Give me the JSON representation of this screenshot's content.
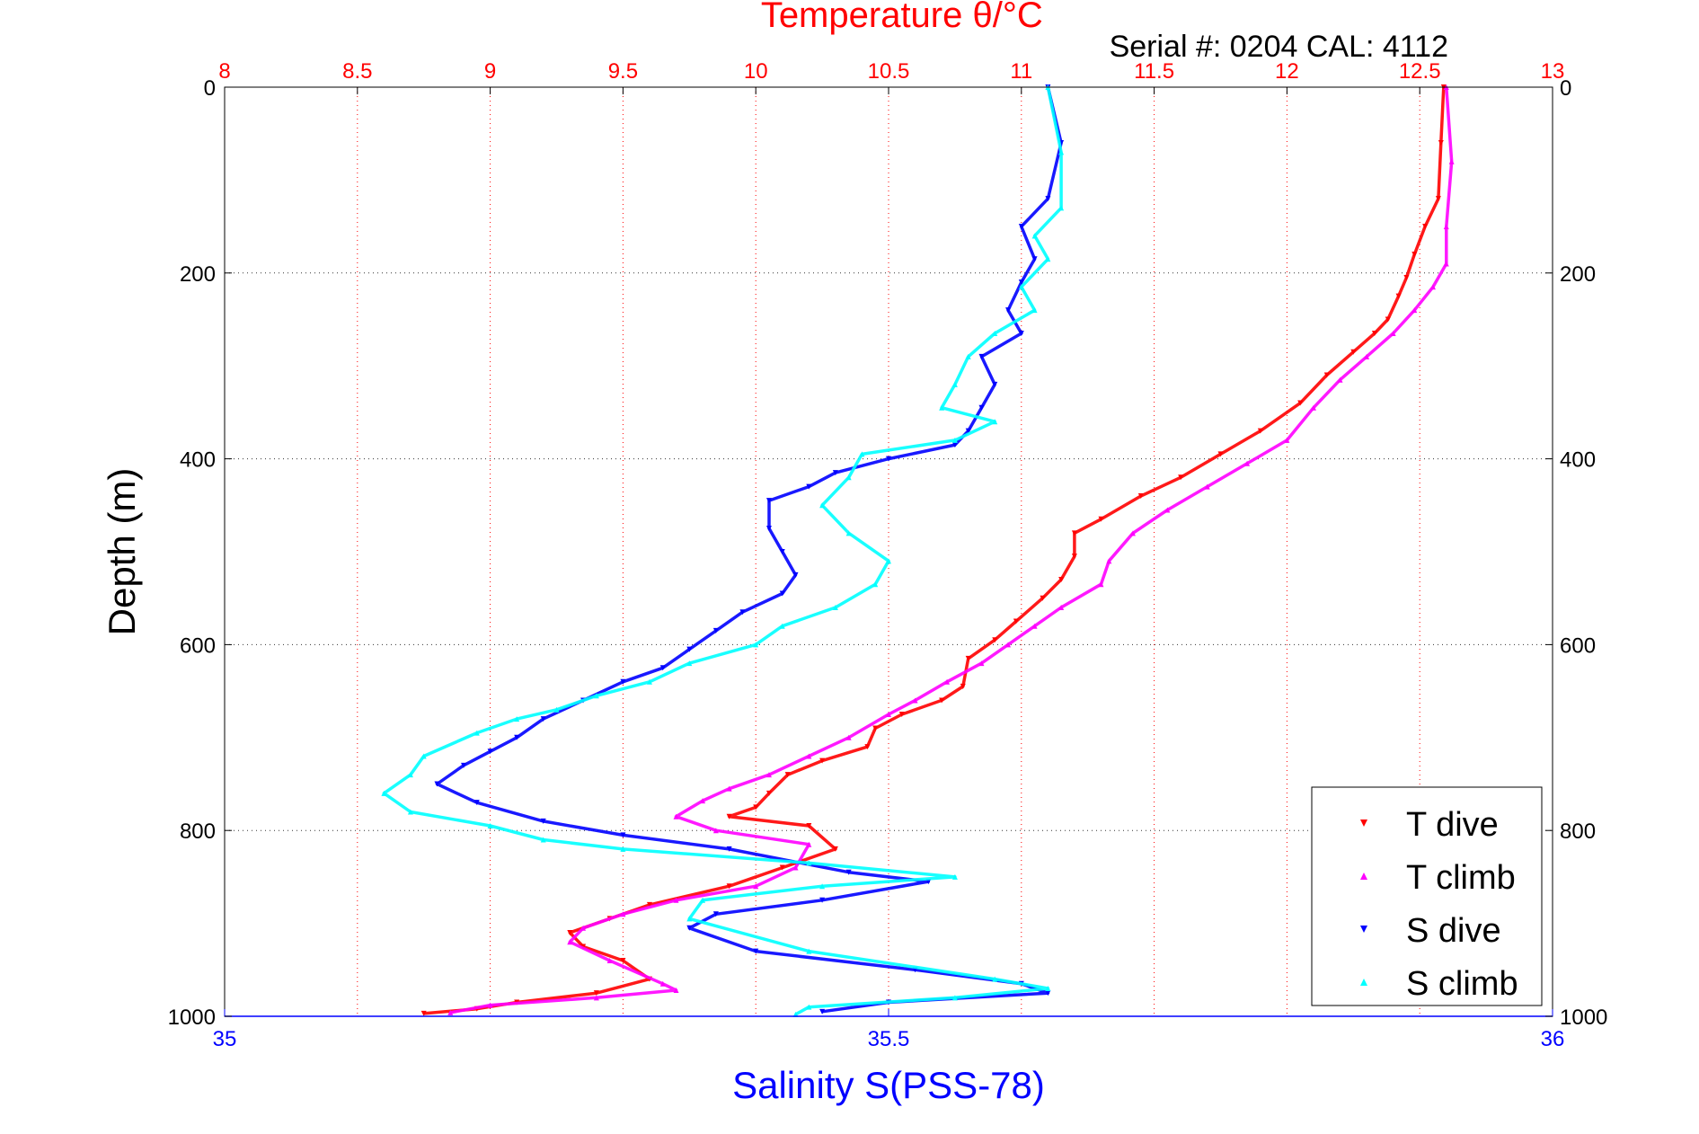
{
  "chart_data": {
    "type": "scatter",
    "title": "Temperature θ/°C",
    "subtitle": "Serial #: 0204  CAL: 4112",
    "ylabel": "Depth (m)",
    "xlabel": "Salinity S(PSS-78)",
    "temp_axis": {
      "lim": [
        8,
        13
      ],
      "ticks": [
        "8",
        "8.5",
        "9",
        "9.5",
        "10",
        "10.5",
        "11",
        "11.5",
        "12",
        "12.5",
        "13"
      ],
      "color": "#ff0000"
    },
    "sal_axis": {
      "lim": [
        35,
        36
      ],
      "ticks": [
        "35",
        "35.5",
        "36"
      ],
      "color": "#0000ff"
    },
    "depth_axis": {
      "lim": [
        0,
        1000
      ],
      "reversed": true,
      "ticks": [
        "0",
        "200",
        "400",
        "600",
        "800",
        "1000"
      ]
    },
    "grid": true,
    "legend": {
      "position": "bottom-right",
      "entries": [
        "T dive",
        "T climb",
        "S dive",
        "S climb"
      ]
    },
    "series": [
      {
        "name": "T dive",
        "axis": "temperature",
        "color": "#ff0000",
        "marker": "triangle-down",
        "points": [
          [
            12.59,
            0
          ],
          [
            12.58,
            60
          ],
          [
            12.57,
            120
          ],
          [
            12.52,
            150
          ],
          [
            12.48,
            180
          ],
          [
            12.45,
            205
          ],
          [
            12.42,
            225
          ],
          [
            12.38,
            250
          ],
          [
            12.33,
            265
          ],
          [
            12.25,
            285
          ],
          [
            12.15,
            310
          ],
          [
            12.05,
            340
          ],
          [
            11.9,
            370
          ],
          [
            11.75,
            395
          ],
          [
            11.6,
            420
          ],
          [
            11.45,
            440
          ],
          [
            11.3,
            465
          ],
          [
            11.2,
            480
          ],
          [
            11.2,
            505
          ],
          [
            11.15,
            530
          ],
          [
            11.08,
            550
          ],
          [
            10.98,
            575
          ],
          [
            10.9,
            595
          ],
          [
            10.8,
            615
          ],
          [
            10.78,
            645
          ],
          [
            10.7,
            660
          ],
          [
            10.55,
            675
          ],
          [
            10.45,
            690
          ],
          [
            10.42,
            710
          ],
          [
            10.25,
            725
          ],
          [
            10.12,
            740
          ],
          [
            10.05,
            760
          ],
          [
            10.0,
            775
          ],
          [
            9.9,
            785
          ],
          [
            10.2,
            795
          ],
          [
            10.3,
            820
          ],
          [
            10.1,
            840
          ],
          [
            9.9,
            860
          ],
          [
            9.6,
            880
          ],
          [
            9.45,
            895
          ],
          [
            9.3,
            910
          ],
          [
            9.35,
            925
          ],
          [
            9.5,
            940
          ],
          [
            9.6,
            960
          ],
          [
            9.4,
            975
          ],
          [
            9.1,
            985
          ],
          [
            8.95,
            992
          ],
          [
            8.75,
            997
          ]
        ]
      },
      {
        "name": "T climb",
        "axis": "temperature",
        "color": "#ff00ff",
        "marker": "triangle-up",
        "points": [
          [
            12.6,
            0
          ],
          [
            12.62,
            80
          ],
          [
            12.6,
            150
          ],
          [
            12.6,
            190
          ],
          [
            12.55,
            215
          ],
          [
            12.48,
            240
          ],
          [
            12.4,
            265
          ],
          [
            12.3,
            290
          ],
          [
            12.2,
            315
          ],
          [
            12.1,
            345
          ],
          [
            12.0,
            380
          ],
          [
            11.85,
            405
          ],
          [
            11.7,
            430
          ],
          [
            11.55,
            455
          ],
          [
            11.42,
            480
          ],
          [
            11.33,
            510
          ],
          [
            11.3,
            535
          ],
          [
            11.15,
            560
          ],
          [
            11.05,
            580
          ],
          [
            10.95,
            600
          ],
          [
            10.85,
            620
          ],
          [
            10.72,
            640
          ],
          [
            10.6,
            660
          ],
          [
            10.5,
            675
          ],
          [
            10.35,
            700
          ],
          [
            10.2,
            720
          ],
          [
            10.05,
            740
          ],
          [
            9.9,
            755
          ],
          [
            9.8,
            768
          ],
          [
            9.7,
            785
          ],
          [
            9.85,
            800
          ],
          [
            10.2,
            815
          ],
          [
            10.15,
            840
          ],
          [
            10.0,
            860
          ],
          [
            9.7,
            875
          ],
          [
            9.5,
            890
          ],
          [
            9.35,
            905
          ],
          [
            9.3,
            920
          ],
          [
            9.45,
            940
          ],
          [
            9.65,
            965
          ],
          [
            9.7,
            972
          ],
          [
            9.4,
            980
          ],
          [
            9.0,
            988
          ],
          [
            8.85,
            996
          ]
        ]
      },
      {
        "name": "S dive",
        "axis": "salinity",
        "color": "#0000ff",
        "marker": "triangle-down",
        "points": [
          [
            35.62,
            0
          ],
          [
            35.63,
            60
          ],
          [
            35.62,
            120
          ],
          [
            35.6,
            150
          ],
          [
            35.61,
            185
          ],
          [
            35.6,
            210
          ],
          [
            35.59,
            240
          ],
          [
            35.6,
            265
          ],
          [
            35.57,
            290
          ],
          [
            35.58,
            320
          ],
          [
            35.57,
            345
          ],
          [
            35.56,
            370
          ],
          [
            35.55,
            385
          ],
          [
            35.5,
            400
          ],
          [
            35.46,
            415
          ],
          [
            35.44,
            430
          ],
          [
            35.41,
            445
          ],
          [
            35.41,
            475
          ],
          [
            35.42,
            500
          ],
          [
            35.43,
            525
          ],
          [
            35.42,
            545
          ],
          [
            35.39,
            565
          ],
          [
            35.37,
            585
          ],
          [
            35.35,
            605
          ],
          [
            35.33,
            625
          ],
          [
            35.3,
            640
          ],
          [
            35.27,
            660
          ],
          [
            35.24,
            680
          ],
          [
            35.22,
            700
          ],
          [
            35.2,
            715
          ],
          [
            35.18,
            730
          ],
          [
            35.16,
            750
          ],
          [
            35.19,
            770
          ],
          [
            35.24,
            790
          ],
          [
            35.3,
            805
          ],
          [
            35.38,
            820
          ],
          [
            35.47,
            845
          ],
          [
            35.53,
            855
          ],
          [
            35.45,
            875
          ],
          [
            35.37,
            890
          ],
          [
            35.35,
            905
          ],
          [
            35.4,
            930
          ],
          [
            35.52,
            950
          ],
          [
            35.6,
            965
          ],
          [
            35.62,
            975
          ],
          [
            35.5,
            985
          ],
          [
            35.45,
            995
          ]
        ]
      },
      {
        "name": "S climb",
        "axis": "salinity",
        "color": "#00ffff",
        "marker": "triangle-up",
        "points": [
          [
            35.62,
            0
          ],
          [
            35.63,
            70
          ],
          [
            35.63,
            130
          ],
          [
            35.61,
            160
          ],
          [
            35.62,
            185
          ],
          [
            35.6,
            215
          ],
          [
            35.61,
            240
          ],
          [
            35.58,
            265
          ],
          [
            35.56,
            290
          ],
          [
            35.55,
            320
          ],
          [
            35.54,
            345
          ],
          [
            35.58,
            360
          ],
          [
            35.55,
            380
          ],
          [
            35.48,
            395
          ],
          [
            35.47,
            420
          ],
          [
            35.45,
            450
          ],
          [
            35.47,
            480
          ],
          [
            35.5,
            510
          ],
          [
            35.49,
            535
          ],
          [
            35.46,
            560
          ],
          [
            35.42,
            580
          ],
          [
            35.4,
            600
          ],
          [
            35.35,
            620
          ],
          [
            35.32,
            640
          ],
          [
            35.28,
            655
          ],
          [
            35.25,
            670
          ],
          [
            35.22,
            680
          ],
          [
            35.19,
            695
          ],
          [
            35.15,
            720
          ],
          [
            35.14,
            740
          ],
          [
            35.12,
            760
          ],
          [
            35.14,
            780
          ],
          [
            35.2,
            795
          ],
          [
            35.24,
            810
          ],
          [
            35.3,
            820
          ],
          [
            35.44,
            835
          ],
          [
            35.55,
            850
          ],
          [
            35.45,
            860
          ],
          [
            35.36,
            875
          ],
          [
            35.35,
            895
          ],
          [
            35.44,
            930
          ],
          [
            35.58,
            960
          ],
          [
            35.62,
            970
          ],
          [
            35.55,
            980
          ],
          [
            35.44,
            990
          ],
          [
            35.43,
            998
          ]
        ]
      }
    ]
  }
}
